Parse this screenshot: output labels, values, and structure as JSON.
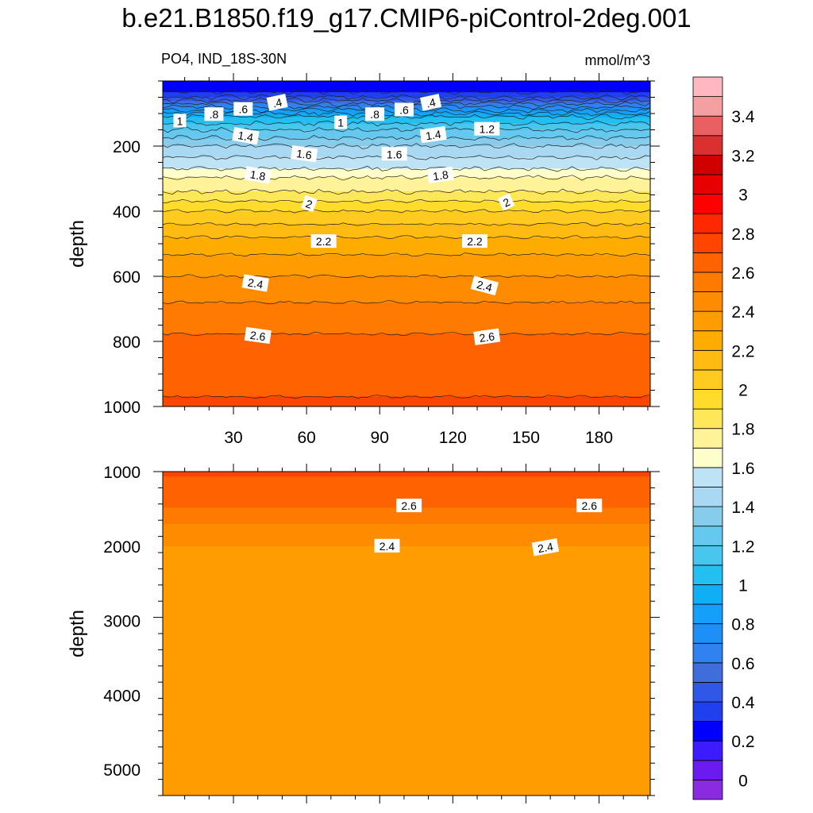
{
  "title": "b.e21.B1850.f19_g17.CMIP6-piControl-2deg.001",
  "subtitle_left": "PO4, IND_18S-30N",
  "subtitle_right": "mmol/m^3",
  "chart_data": [
    {
      "type": "contour",
      "panel": "upper",
      "variable": "PO4",
      "region": "IND_18S-30N",
      "units": "mmol/m^3",
      "xlabel": "",
      "ylabel": "depth",
      "xlim": [
        1,
        201
      ],
      "ylim": [
        1000,
        0
      ],
      "x_ticks": [
        30,
        60,
        90,
        120,
        150,
        180
      ],
      "y_ticks": [
        200,
        400,
        600,
        800,
        1000
      ],
      "profile": [
        {
          "depth": 0,
          "value": 0.2
        },
        {
          "depth": 25,
          "value": 0.25
        },
        {
          "depth": 50,
          "value": 0.4
        },
        {
          "depth": 70,
          "value": 0.6
        },
        {
          "depth": 90,
          "value": 0.8
        },
        {
          "depth": 110,
          "value": 1.0
        },
        {
          "depth": 150,
          "value": 1.2
        },
        {
          "depth": 200,
          "value": 1.4
        },
        {
          "depth": 270,
          "value": 1.6
        },
        {
          "depth": 310,
          "value": 1.75
        },
        {
          "depth": 340,
          "value": 1.8
        },
        {
          "depth": 400,
          "value": 2.0
        },
        {
          "depth": 480,
          "value": 2.2
        },
        {
          "depth": 560,
          "value": 2.35
        },
        {
          "depth": 640,
          "value": 2.45
        },
        {
          "depth": 720,
          "value": 2.55
        },
        {
          "depth": 800,
          "value": 2.62
        },
        {
          "depth": 940,
          "value": 2.68
        },
        {
          "depth": 1000,
          "value": 2.72
        }
      ],
      "contour_labels": [
        {
          "text": ".4",
          "x": 48,
          "depth": 67,
          "angle": -12
        },
        {
          "text": ".6",
          "x": 34,
          "depth": 87,
          "angle": 0
        },
        {
          "text": ".8",
          "x": 22,
          "depth": 103,
          "angle": 0
        },
        {
          "text": "1",
          "x": 8,
          "depth": 123,
          "angle": 0
        },
        {
          "text": ".4",
          "x": 111,
          "depth": 67,
          "angle": -12
        },
        {
          "text": ".6",
          "x": 100,
          "depth": 89,
          "angle": 0
        },
        {
          "text": ".8",
          "x": 88,
          "depth": 103,
          "angle": 0
        },
        {
          "text": "1",
          "x": 74,
          "depth": 128,
          "angle": 0
        },
        {
          "text": "1.2",
          "x": 134,
          "depth": 148,
          "angle": 0
        },
        {
          "text": "1.4",
          "x": 35,
          "depth": 170,
          "angle": 10
        },
        {
          "text": "1.4",
          "x": 112,
          "depth": 166,
          "angle": -8
        },
        {
          "text": "1.6",
          "x": 59,
          "depth": 225,
          "angle": 8
        },
        {
          "text": "1.6",
          "x": 96,
          "depth": 225,
          "angle": 0
        },
        {
          "text": "1.8",
          "x": 40,
          "depth": 290,
          "angle": 10
        },
        {
          "text": "1.8",
          "x": 115,
          "depth": 290,
          "angle": -8
        },
        {
          "text": "2",
          "x": 61,
          "depth": 378,
          "angle": 20
        },
        {
          "text": "2",
          "x": 142,
          "depth": 373,
          "angle": -25
        },
        {
          "text": "2.2",
          "x": 67,
          "depth": 493,
          "angle": 0
        },
        {
          "text": "2.2",
          "x": 129,
          "depth": 493,
          "angle": 0
        },
        {
          "text": "2.4",
          "x": 39,
          "depth": 622,
          "angle": 10
        },
        {
          "text": "2.4",
          "x": 133,
          "depth": 630,
          "angle": 15
        },
        {
          "text": "2.6",
          "x": 40,
          "depth": 783,
          "angle": 8
        },
        {
          "text": "2.6",
          "x": 134,
          "depth": 787,
          "angle": -8
        }
      ]
    },
    {
      "type": "contour",
      "panel": "lower",
      "variable": "PO4",
      "region": "IND_18S-30N",
      "units": "mmol/m^3",
      "xlabel": "",
      "ylabel": "depth",
      "xlim": [
        1,
        201
      ],
      "ylim": [
        5350,
        1000
      ],
      "y_ticks": [
        1000,
        2000,
        3000,
        4000,
        5000
      ],
      "profile": [
        {
          "depth": 1000,
          "value": 2.72
        },
        {
          "depth": 1150,
          "value": 2.68
        },
        {
          "depth": 1450,
          "value": 2.62
        },
        {
          "depth": 1700,
          "value": 2.5
        },
        {
          "depth": 2000,
          "value": 2.4
        },
        {
          "depth": 2100,
          "value": 2.3
        },
        {
          "depth": 5350,
          "value": 2.3
        }
      ],
      "contour_labels": [
        {
          "text": "2.6",
          "x": 102,
          "depth": 1460,
          "angle": 0
        },
        {
          "text": "2.6",
          "x": 176,
          "depth": 1460,
          "angle": 0
        },
        {
          "text": "2.4",
          "x": 93,
          "depth": 2000,
          "angle": 0
        },
        {
          "text": "2.4",
          "x": 158,
          "depth": 2020,
          "angle": -10
        }
      ]
    }
  ],
  "colorbar": {
    "levels": [
      -0.1,
      0,
      0.1,
      0.2,
      0.3,
      0.4,
      0.5,
      0.6,
      0.7,
      0.8,
      0.9,
      1.0,
      1.1,
      1.2,
      1.3,
      1.4,
      1.5,
      1.6,
      1.7,
      1.8,
      1.9,
      2.0,
      2.1,
      2.2,
      2.3,
      2.4,
      2.5,
      2.6,
      2.7,
      2.8,
      2.9,
      3.0,
      3.1,
      3.2,
      3.3,
      3.4,
      3.5,
      3.6
    ],
    "colors": [
      "#8a2be2",
      "#6a1cf0",
      "#3c1cff",
      "#0000ff",
      "#2040f0",
      "#3058e6",
      "#3f6edc",
      "#2f82f0",
      "#1f8ff8",
      "#169ffa",
      "#10aff5",
      "#22bff0",
      "#48c6ee",
      "#64c8ef",
      "#88ccec",
      "#a8d8f2",
      "#bee3f5",
      "#ffffcc",
      "#fff39a",
      "#ffe75a",
      "#ffdc2c",
      "#ffcb1e",
      "#ffbb12",
      "#ffac00",
      "#ff9d00",
      "#ff8c00",
      "#ff7a00",
      "#ff6200",
      "#ff4500",
      "#ff2800",
      "#ff0000",
      "#e80000",
      "#cf0000",
      "#da3030",
      "#e86060",
      "#f4a0a0",
      "#ffb8c0"
    ],
    "tick_labels": [
      "0",
      "0.2",
      "0.4",
      "0.6",
      "0.8",
      "1",
      "1.2",
      "1.4",
      "1.6",
      "1.8",
      "2",
      "2.2",
      "2.4",
      "2.6",
      "2.8",
      "3",
      "3.2",
      "3.4"
    ]
  }
}
